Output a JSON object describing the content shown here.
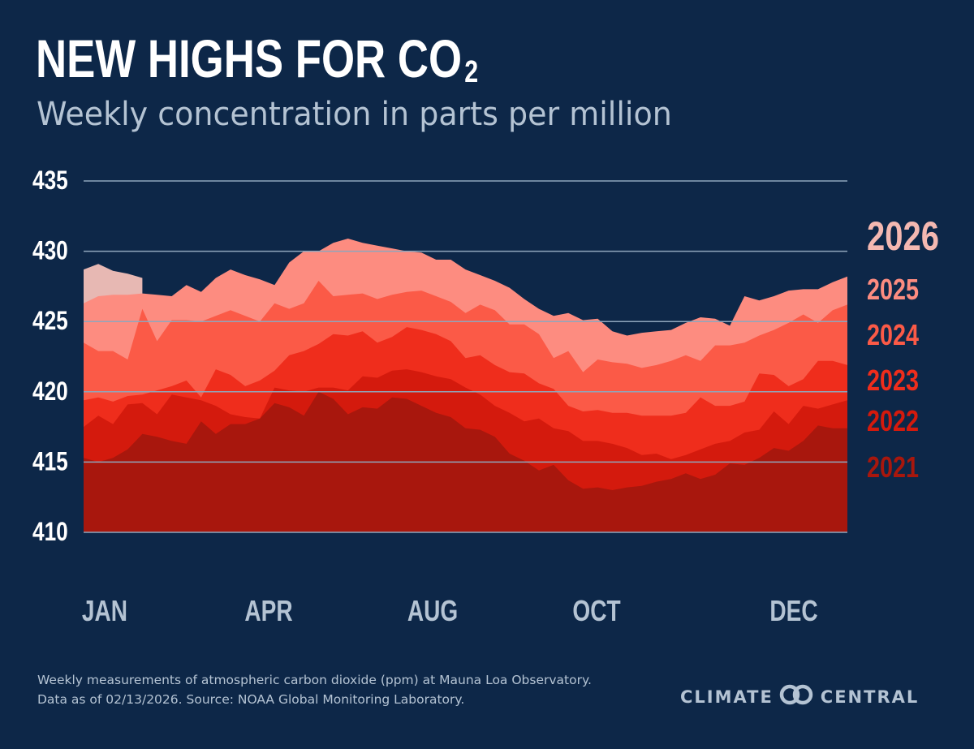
{
  "header": {
    "title": "NEW HIGHS FOR CO",
    "title_subscript": "2",
    "subtitle": "Weekly concentration in parts per million"
  },
  "footer": {
    "note_line1": "Weekly measurements of atmospheric carbon dioxide (ppm) at Mauna Loa Observatory.",
    "note_line2": "Data as of 02/13/2026. Source: NOAA Global Monitoring Laboratory."
  },
  "brand": {
    "left": "CLIMATE",
    "right": "CENTRAL",
    "logo_icon": "interlocking-circles-logo"
  },
  "colors": {
    "background": "#0d2748",
    "gridline": "#8fa6bc",
    "axis_text": "#ffffff",
    "month_text": "#b4c3d3",
    "y2021": "#a8170d",
    "y2022": "#d41a0d",
    "y2023": "#ef2d1c",
    "y2024": "#fb5a47",
    "y2025": "#fd8c80",
    "y2026": "#e7b8b3"
  },
  "chart_data": {
    "type": "area",
    "title": "NEW HIGHS FOR CO2",
    "subtitle": "Weekly concentration in parts per million",
    "xlabel": "",
    "ylabel": "",
    "x_ticks": [
      "JAN",
      "APR",
      "AUG",
      "OCT",
      "DEC"
    ],
    "y_ticks": [
      410,
      415,
      420,
      425,
      430,
      435
    ],
    "ylim": [
      410,
      435
    ],
    "grid": "horizontal",
    "legend": "right, labels at series end",
    "series": [
      {
        "name": "2026",
        "color": "#e7b8b3",
        "week_start": 1,
        "values": [
          428.7,
          429.1,
          428.6,
          428.4,
          428.1
        ]
      },
      {
        "name": "2025",
        "color": "#fd8c80",
        "week_start": 1,
        "values": [
          426.3,
          426.8,
          426.9,
          426.9,
          427.0,
          426.9,
          426.8,
          427.6,
          427.1,
          428.1,
          428.7,
          428.3,
          428.0,
          427.6,
          429.2,
          430.0,
          430.0,
          430.6,
          430.9,
          430.6,
          430.4,
          430.2,
          430.0,
          429.9,
          429.4,
          429.4,
          428.7,
          428.3,
          427.9,
          427.4,
          426.6,
          425.9,
          425.4,
          425.6,
          425.1,
          425.2,
          424.3,
          424.0,
          424.2,
          424.3,
          424.4,
          424.9,
          425.3,
          425.2,
          424.7,
          426.8,
          426.5,
          426.8,
          427.2,
          427.3,
          427.3,
          427.8,
          428.2
        ]
      },
      {
        "name": "2024",
        "color": "#fb5a47",
        "week_start": 1,
        "values": [
          423.5,
          422.9,
          422.9,
          422.3,
          425.9,
          423.6,
          425.1,
          425.1,
          425.0,
          425.4,
          425.8,
          425.4,
          425.0,
          426.3,
          425.9,
          426.3,
          427.9,
          426.8,
          426.9,
          427.0,
          426.6,
          426.9,
          427.1,
          427.2,
          426.8,
          426.4,
          425.6,
          426.2,
          425.8,
          424.8,
          424.8,
          424.1,
          422.4,
          422.9,
          421.4,
          422.3,
          422.1,
          422.0,
          421.7,
          421.9,
          422.2,
          422.6,
          422.2,
          423.3,
          423.3,
          423.5,
          424.0,
          424.4,
          424.9,
          425.5,
          424.9,
          425.8,
          426.2
        ]
      },
      {
        "name": "2023",
        "color": "#ef2d1c",
        "week_start": 1,
        "values": [
          419.4,
          419.6,
          419.3,
          419.7,
          419.8,
          420.1,
          420.4,
          420.8,
          419.6,
          421.6,
          421.2,
          420.4,
          420.8,
          421.5,
          422.6,
          422.9,
          423.4,
          424.1,
          424.0,
          424.3,
          423.5,
          423.9,
          424.6,
          424.4,
          424.1,
          423.6,
          422.4,
          422.6,
          421.9,
          421.4,
          421.3,
          420.6,
          420.2,
          419.0,
          418.6,
          418.7,
          418.5,
          418.5,
          418.3,
          418.3,
          418.3,
          418.5,
          419.6,
          419.0,
          419.0,
          419.3,
          421.3,
          421.2,
          420.4,
          420.9,
          422.2,
          422.2,
          421.9
        ]
      },
      {
        "name": "2022",
        "color": "#d41a0d",
        "week_start": 1,
        "values": [
          417.5,
          418.3,
          417.7,
          419.1,
          419.2,
          418.4,
          419.8,
          419.6,
          419.4,
          419.0,
          418.4,
          418.2,
          418.1,
          420.3,
          420.1,
          420.0,
          420.3,
          420.3,
          420.1,
          421.1,
          421.0,
          421.5,
          421.6,
          421.4,
          421.1,
          420.9,
          420.3,
          419.8,
          419.0,
          418.5,
          417.9,
          418.1,
          417.4,
          417.2,
          416.5,
          416.5,
          416.3,
          416.0,
          415.5,
          415.6,
          415.2,
          415.5,
          415.9,
          416.3,
          416.5,
          417.1,
          417.3,
          418.6,
          417.7,
          419.0,
          418.8,
          419.1,
          419.4
        ]
      },
      {
        "name": "2021",
        "color": "#a8170d",
        "week_start": 1,
        "values": [
          415.3,
          415.0,
          415.3,
          415.9,
          417.0,
          416.8,
          416.5,
          416.3,
          417.9,
          417.0,
          417.7,
          417.7,
          418.1,
          419.2,
          418.9,
          418.3,
          420.0,
          419.5,
          418.4,
          418.9,
          418.8,
          419.6,
          419.5,
          419.0,
          418.5,
          418.2,
          417.4,
          417.3,
          416.8,
          415.6,
          415.1,
          414.4,
          414.8,
          413.7,
          413.1,
          413.2,
          413.0,
          413.2,
          413.3,
          413.6,
          413.8,
          414.2,
          413.8,
          414.1,
          414.9,
          414.8,
          415.3,
          416.0,
          415.8,
          416.5,
          417.6,
          417.4,
          417.4
        ]
      }
    ]
  }
}
